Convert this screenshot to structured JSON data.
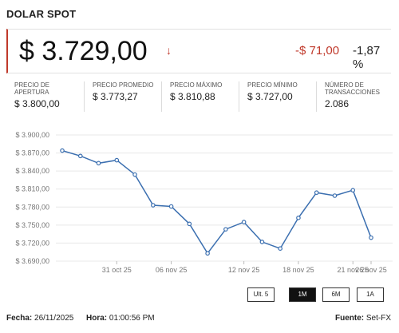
{
  "title": "DOLAR SPOT",
  "price": "$ 3.729,00",
  "change": "-$ 71,00",
  "change_pct": "-1,87 %",
  "stats": [
    {
      "label": "PRECIO DE APERTURA",
      "value": "$ 3.800,00"
    },
    {
      "label": "PRECIO PROMEDIO",
      "value": "$ 3.773,27"
    },
    {
      "label": "PRECIO MÁXIMO",
      "value": "$ 3.810,88"
    },
    {
      "label": "PRECIO MÍNIMO",
      "value": "$ 3.727,00"
    },
    {
      "label": "NÚMERO DE TRANSACCIONES",
      "value": "2.086"
    }
  ],
  "range_buttons": [
    "Ult. 5",
    "1M",
    "6M",
    "1A"
  ],
  "active_range": "1M",
  "footer": {
    "fecha_label": "Fecha:",
    "fecha": "26/11/2025",
    "hora_label": "Hora:",
    "hora": "01:00:56 PM",
    "fuente_label": "Fuente:",
    "fuente": "Set-FX"
  },
  "colors": {
    "accent_red": "#c0392b",
    "line": "#3b6fb0"
  },
  "chart_data": {
    "type": "line",
    "yticks": [
      "$ 3.900,00",
      "$ 3.870,00",
      "$ 3.840,00",
      "$ 3.810,00",
      "$ 3.780,00",
      "$ 3.750,00",
      "$ 3.720,00",
      "$ 3.690,00"
    ],
    "ylim": [
      3690,
      3900
    ],
    "xticks": [
      "31 oct 25",
      "06 nov 25",
      "12 nov 25",
      "18 nov 25",
      "21 nov 25",
      "26 nov 25"
    ],
    "points": [
      {
        "x": "28 oct 25",
        "y": 3874
      },
      {
        "x": "29 oct 25",
        "y": 3865
      },
      {
        "x": "30 oct 25",
        "y": 3853
      },
      {
        "x": "31 oct 25",
        "y": 3858
      },
      {
        "x": "04 nov 25",
        "y": 3834
      },
      {
        "x": "05 nov 25",
        "y": 3783
      },
      {
        "x": "06 nov 25",
        "y": 3781
      },
      {
        "x": "07 nov 25",
        "y": 3752
      },
      {
        "x": "10 nov 25",
        "y": 3703
      },
      {
        "x": "11 nov 25",
        "y": 3743
      },
      {
        "x": "12 nov 25",
        "y": 3755
      },
      {
        "x": "13 nov 25",
        "y": 3722
      },
      {
        "x": "14 nov 25",
        "y": 3711
      },
      {
        "x": "18 nov 25",
        "y": 3762
      },
      {
        "x": "19 nov 25",
        "y": 3804
      },
      {
        "x": "20 nov 25",
        "y": 3799
      },
      {
        "x": "21 nov 25",
        "y": 3808
      },
      {
        "x": "26 nov 25",
        "y": 3729
      }
    ],
    "grid": true
  }
}
